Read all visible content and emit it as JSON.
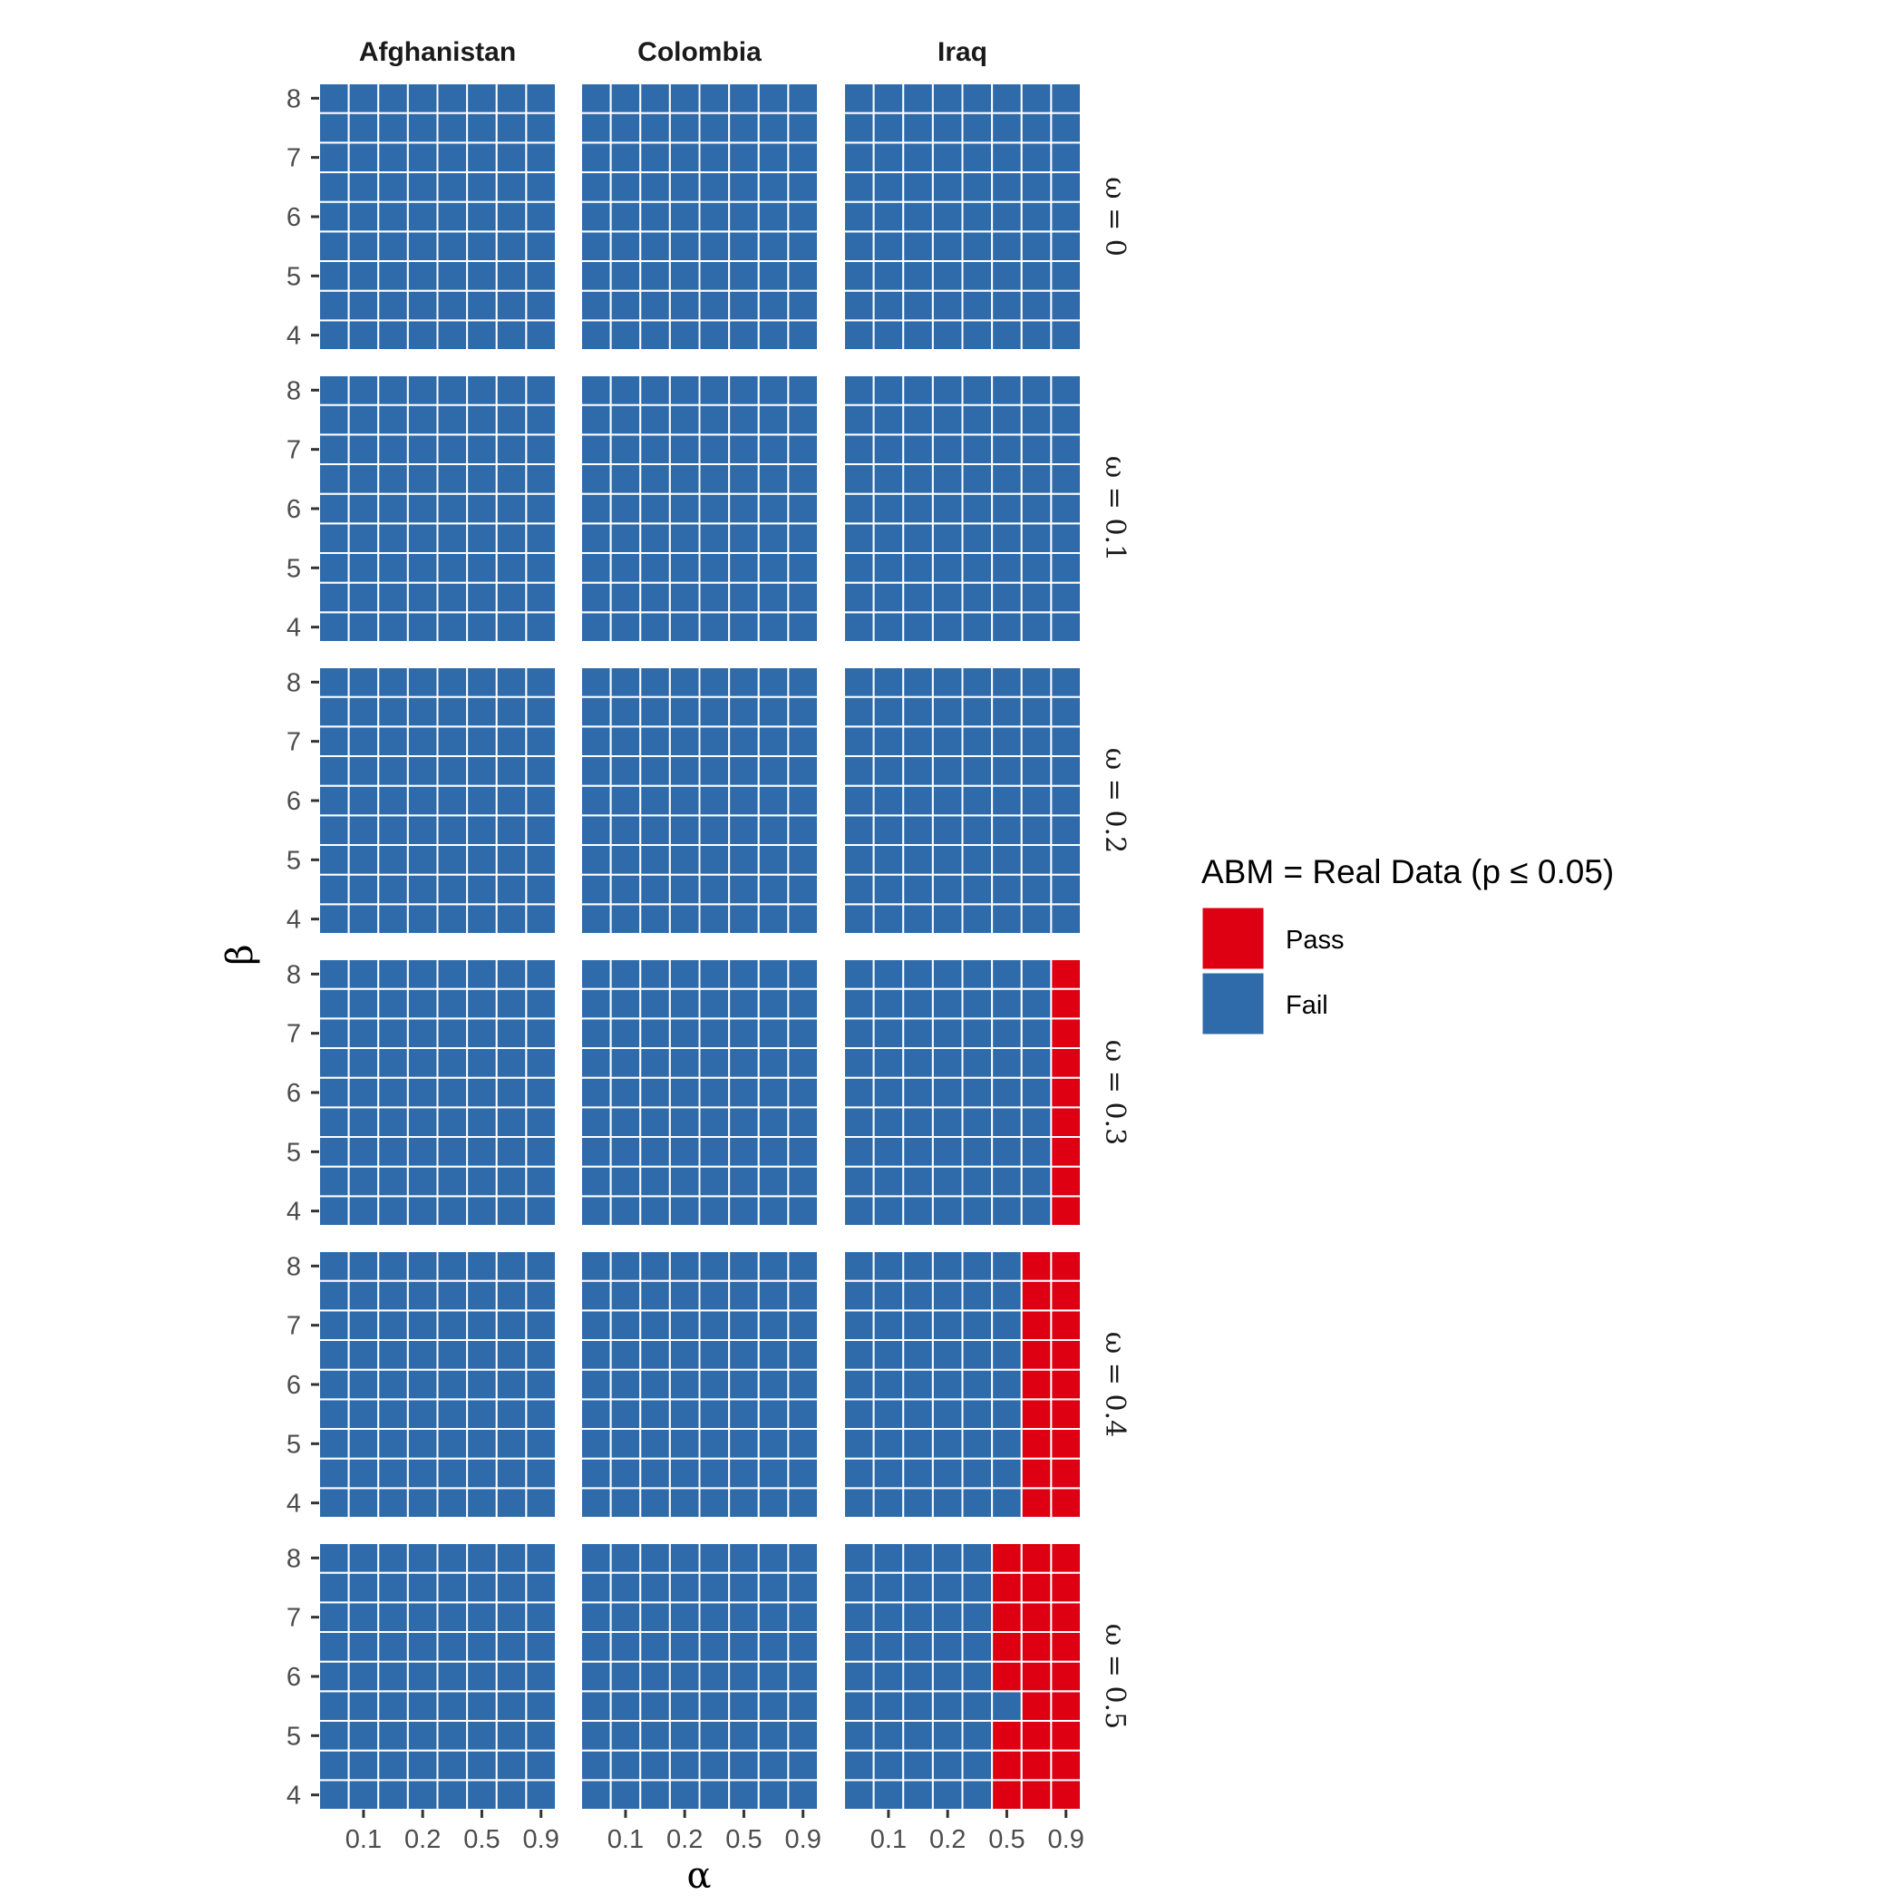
{
  "chart_data": {
    "type": "heatmap",
    "xlabel": "α",
    "ylabel": "β",
    "columns": [
      "Afghanistan",
      "Colombia",
      "Iraq"
    ],
    "rows": [
      "ω = 0",
      "ω = 0.1",
      "ω = 0.2",
      "ω = 0.3",
      "ω = 0.4",
      "ω = 0.5"
    ],
    "x_ticks": [
      "0.1",
      "0.2",
      "0.5",
      "0.9"
    ],
    "y_ticks": [
      "4",
      "5",
      "6",
      "7",
      "8"
    ],
    "grid": {
      "n_cols": 8,
      "n_rows": 9
    },
    "legend": {
      "title": "ABM = Real Data (p ≤ 0.05)",
      "position": "right",
      "entries": [
        {
          "label": "Pass",
          "color": "#DE0012"
        },
        {
          "label": "Fail",
          "color": "#2F6BAA"
        }
      ]
    },
    "default_value": "Fail",
    "pass_cells": [
      {
        "column": "Iraq",
        "row": "ω = 0.3",
        "col_range": [
          7,
          7
        ],
        "row_range": [
          0,
          8
        ]
      },
      {
        "column": "Iraq",
        "row": "ω = 0.4",
        "col_range": [
          6,
          7
        ],
        "row_range": [
          0,
          8
        ]
      },
      {
        "column": "Iraq",
        "row": "ω = 0.5",
        "col_range": [
          6,
          7
        ],
        "row_range": [
          0,
          8
        ]
      },
      {
        "column": "Iraq",
        "row": "ω = 0.5",
        "col_range": [
          5,
          5
        ],
        "row_range": [
          0,
          2
        ]
      },
      {
        "column": "Iraq",
        "row": "ω = 0.5",
        "col_range": [
          5,
          5
        ],
        "row_range": [
          4,
          8
        ]
      }
    ]
  }
}
